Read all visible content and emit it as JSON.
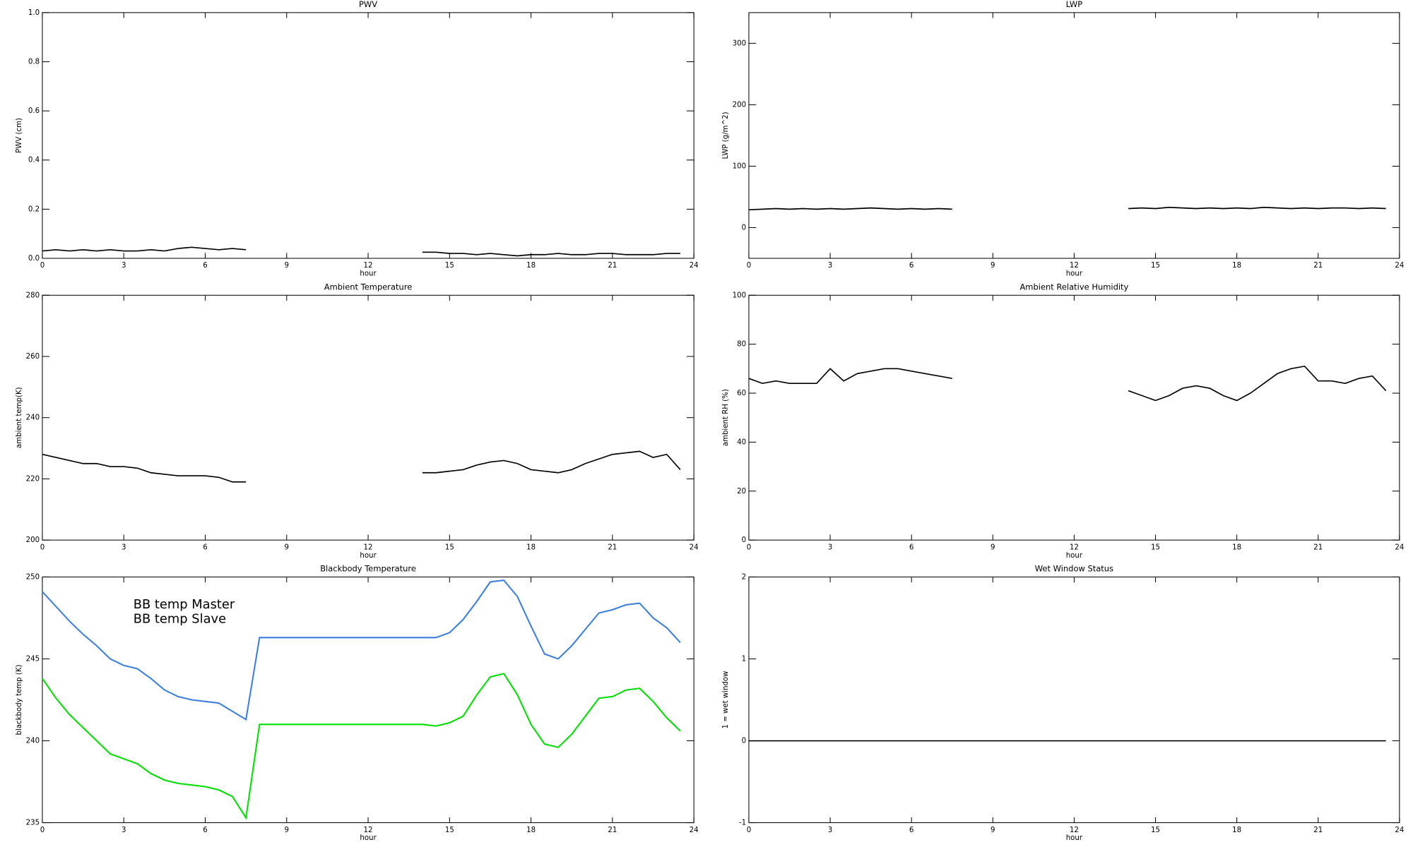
{
  "chart_data": [
    {
      "type": "line",
      "title": "PWV",
      "xlabel": "hour",
      "ylabel": "PWV (cm)",
      "xlim": [
        0,
        24
      ],
      "xticks": [
        0,
        3,
        6,
        9,
        12,
        15,
        18,
        21,
        24
      ],
      "ylim": [
        0,
        1
      ],
      "yticks": [
        {
          "value": 0,
          "label": "0.0"
        },
        0.2,
        0.4,
        0.6,
        0.8,
        {
          "value": 1,
          "label": "1.0"
        }
      ],
      "x": [
        0,
        0.5,
        1,
        1.5,
        2,
        2.5,
        3,
        3.5,
        4,
        4.5,
        5,
        5.5,
        6,
        6.5,
        7,
        7.5,
        8,
        8.5,
        9,
        9.5,
        10,
        10.5,
        11,
        11.5,
        12,
        12.5,
        13,
        13.5,
        14,
        14.5,
        15,
        15.5,
        16,
        16.5,
        17,
        17.5,
        18,
        18.5,
        19,
        19.5,
        20,
        20.5,
        21,
        21.5,
        22,
        22.5,
        23,
        23.5
      ],
      "series": [
        {
          "color": "#000000",
          "values": [
            0.03,
            0.035,
            0.03,
            0.035,
            0.03,
            0.035,
            0.03,
            0.03,
            0.035,
            0.03,
            0.04,
            0.045,
            0.04,
            0.035,
            0.04,
            0.035,
            null,
            null,
            null,
            null,
            null,
            null,
            null,
            null,
            null,
            null,
            null,
            null,
            0.025,
            0.025,
            0.02,
            0.02,
            0.015,
            0.02,
            0.015,
            0.01,
            0.015,
            0.015,
            0.02,
            0.015,
            0.015,
            0.02,
            0.02,
            0.015,
            0.015,
            0.015,
            0.02,
            0.02
          ]
        }
      ]
    },
    {
      "type": "line",
      "title": "LWP",
      "xlabel": "hour",
      "ylabel": "LWP (g/m^2)",
      "xlim": [
        0,
        24
      ],
      "xticks": [
        0,
        3,
        6,
        9,
        12,
        15,
        18,
        21,
        24
      ],
      "ylim": [
        -50,
        350
      ],
      "yticks": [
        0,
        100,
        200,
        300
      ],
      "x": [
        0,
        0.5,
        1,
        1.5,
        2,
        2.5,
        3,
        3.5,
        4,
        4.5,
        5,
        5.5,
        6,
        6.5,
        7,
        7.5,
        8,
        8.5,
        9,
        9.5,
        10,
        10.5,
        11,
        11.5,
        12,
        12.5,
        13,
        13.5,
        14,
        14.5,
        15,
        15.5,
        16,
        16.5,
        17,
        17.5,
        18,
        18.5,
        19,
        19.5,
        20,
        20.5,
        21,
        21.5,
        22,
        22.5,
        23,
        23.5
      ],
      "series": [
        {
          "color": "#000000",
          "values": [
            29,
            30,
            31,
            30,
            31,
            30,
            31,
            30,
            31,
            32,
            31,
            30,
            31,
            30,
            31,
            30,
            null,
            null,
            null,
            null,
            null,
            null,
            null,
            null,
            null,
            null,
            null,
            null,
            31,
            32,
            31,
            33,
            32,
            31,
            32,
            31,
            32,
            31,
            33,
            32,
            31,
            32,
            31,
            32,
            32,
            31,
            32,
            31
          ]
        }
      ]
    },
    {
      "type": "line",
      "title": "Ambient Temperature",
      "xlabel": "hour",
      "ylabel": "ambient temp(K)",
      "xlim": [
        0,
        24
      ],
      "xticks": [
        0,
        3,
        6,
        9,
        12,
        15,
        18,
        21,
        24
      ],
      "ylim": [
        200,
        280
      ],
      "yticks": [
        200,
        220,
        240,
        260,
        280
      ],
      "x": [
        0,
        0.5,
        1,
        1.5,
        2,
        2.5,
        3,
        3.5,
        4,
        4.5,
        5,
        5.5,
        6,
        6.5,
        7,
        7.5,
        8,
        8.5,
        9,
        9.5,
        10,
        10.5,
        11,
        11.5,
        12,
        12.5,
        13,
        13.5,
        14,
        14.5,
        15,
        15.5,
        16,
        16.5,
        17,
        17.5,
        18,
        18.5,
        19,
        19.5,
        20,
        20.5,
        21,
        21.5,
        22,
        22.5,
        23,
        23.5
      ],
      "series": [
        {
          "color": "#000000",
          "values": [
            228,
            227,
            226,
            225,
            225,
            224,
            224,
            223.5,
            222,
            221.5,
            221,
            221,
            221,
            220.5,
            219,
            219,
            null,
            null,
            null,
            null,
            null,
            null,
            null,
            null,
            null,
            null,
            null,
            null,
            222,
            222,
            222.5,
            223,
            224.5,
            225.5,
            226,
            225,
            223,
            222.5,
            222,
            223,
            225,
            226.5,
            228,
            228.5,
            229,
            227,
            228,
            223
          ]
        }
      ]
    },
    {
      "type": "line",
      "title": "Ambient Relative Humidity",
      "xlabel": "hour",
      "ylabel": "ambient RH (%)",
      "xlim": [
        0,
        24
      ],
      "xticks": [
        0,
        3,
        6,
        9,
        12,
        15,
        18,
        21,
        24
      ],
      "ylim": [
        0,
        100
      ],
      "yticks": [
        0,
        20,
        40,
        60,
        80,
        100
      ],
      "x": [
        0,
        0.5,
        1,
        1.5,
        2,
        2.5,
        3,
        3.5,
        4,
        4.5,
        5,
        5.5,
        6,
        6.5,
        7,
        7.5,
        8,
        8.5,
        9,
        9.5,
        10,
        10.5,
        11,
        11.5,
        12,
        12.5,
        13,
        13.5,
        14,
        14.5,
        15,
        15.5,
        16,
        16.5,
        17,
        17.5,
        18,
        18.5,
        19,
        19.5,
        20,
        20.5,
        21,
        21.5,
        22,
        22.5,
        23,
        23.5
      ],
      "series": [
        {
          "color": "#000000",
          "values": [
            66,
            64,
            65,
            64,
            64,
            64,
            70,
            65,
            68,
            69,
            70,
            70,
            69,
            68,
            67,
            66,
            null,
            null,
            null,
            null,
            null,
            null,
            null,
            null,
            null,
            null,
            null,
            null,
            61,
            59,
            57,
            59,
            62,
            63,
            62,
            59,
            57,
            60,
            64,
            68,
            70,
            71,
            65,
            65,
            64,
            66,
            67,
            61
          ]
        }
      ]
    },
    {
      "type": "line",
      "title": "Blackbody Temperature",
      "xlabel": "hour",
      "ylabel": "blackbody temp (K)",
      "xlim": [
        0,
        24
      ],
      "xticks": [
        0,
        3,
        6,
        9,
        12,
        15,
        18,
        21,
        24
      ],
      "ylim": [
        235,
        250
      ],
      "yticks": [
        235,
        240,
        245,
        250
      ],
      "x": [
        0,
        0.5,
        1,
        1.5,
        2,
        2.5,
        3,
        3.5,
        4,
        4.5,
        5,
        5.5,
        6,
        6.5,
        7,
        7.5,
        8,
        8.5,
        9,
        9.5,
        10,
        10.5,
        11,
        11.5,
        12,
        12.5,
        13,
        13.5,
        14,
        14.5,
        15,
        15.5,
        16,
        16.5,
        17,
        17.5,
        18,
        18.5,
        19,
        19.5,
        20,
        20.5,
        21,
        21.5,
        22,
        22.5,
        23,
        23.5
      ],
      "series": [
        {
          "name": "BB temp Master",
          "color": "#3a7fe0",
          "values": [
            249.1,
            248.2,
            247.3,
            246.5,
            245.8,
            245,
            244.6,
            244.4,
            243.8,
            243.1,
            242.7,
            242.5,
            242.4,
            242.3,
            241.8,
            241.3,
            246.3,
            246.3,
            246.3,
            246.3,
            246.3,
            246.3,
            246.3,
            246.3,
            246.3,
            246.3,
            246.3,
            246.3,
            246.3,
            246.3,
            246.6,
            247.4,
            248.5,
            249.7,
            249.8,
            248.8,
            247.0,
            245.3,
            245.0,
            245.8,
            246.8,
            247.8,
            248.0,
            248.3,
            248.4,
            247.5,
            246.9,
            246.0
          ]
        },
        {
          "name": "BB temp Slave",
          "color": "#00e000",
          "values": [
            243.8,
            242.6,
            241.6,
            240.8,
            240,
            239.2,
            238.9,
            238.6,
            238,
            237.6,
            237.4,
            237.3,
            237.2,
            237,
            236.6,
            235.3,
            241,
            241,
            241,
            241,
            241,
            241,
            241,
            241,
            241,
            241,
            241,
            241,
            241,
            240.9,
            241.1,
            241.5,
            242.8,
            243.9,
            244.1,
            242.8,
            241,
            239.8,
            239.6,
            240.4,
            241.5,
            242.6,
            242.7,
            243.1,
            243.2,
            242.4,
            241.4,
            240.6
          ]
        }
      ]
    },
    {
      "type": "line",
      "title": "Wet Window Status",
      "xlabel": "hour",
      "ylabel": "1 = wet window",
      "xlim": [
        0,
        24
      ],
      "xticks": [
        0,
        3,
        6,
        9,
        12,
        15,
        18,
        21,
        24
      ],
      "ylim": [
        -1,
        2
      ],
      "yticks": [
        -1,
        0,
        1,
        2
      ],
      "x": [
        0,
        0.5,
        1,
        1.5,
        2,
        2.5,
        3,
        3.5,
        4,
        4.5,
        5,
        5.5,
        6,
        6.5,
        7,
        7.5,
        8,
        8.5,
        9,
        9.5,
        10,
        10.5,
        11,
        11.5,
        12,
        12.5,
        13,
        13.5,
        14,
        14.5,
        15,
        15.5,
        16,
        16.5,
        17,
        17.5,
        18,
        18.5,
        19,
        19.5,
        20,
        20.5,
        21,
        21.5,
        22,
        22.5,
        23,
        23.5
      ],
      "series": [
        {
          "color": "#000000",
          "values": [
            0,
            0,
            0,
            0,
            0,
            0,
            0,
            0,
            0,
            0,
            0,
            0,
            0,
            0,
            0,
            0,
            0,
            0,
            0,
            0,
            0,
            0,
            0,
            0,
            0,
            0,
            0,
            0,
            0,
            0,
            0,
            0,
            0,
            0,
            0,
            0,
            0,
            0,
            0,
            0,
            0,
            0,
            0,
            0,
            0,
            0,
            0,
            0
          ]
        }
      ]
    }
  ]
}
